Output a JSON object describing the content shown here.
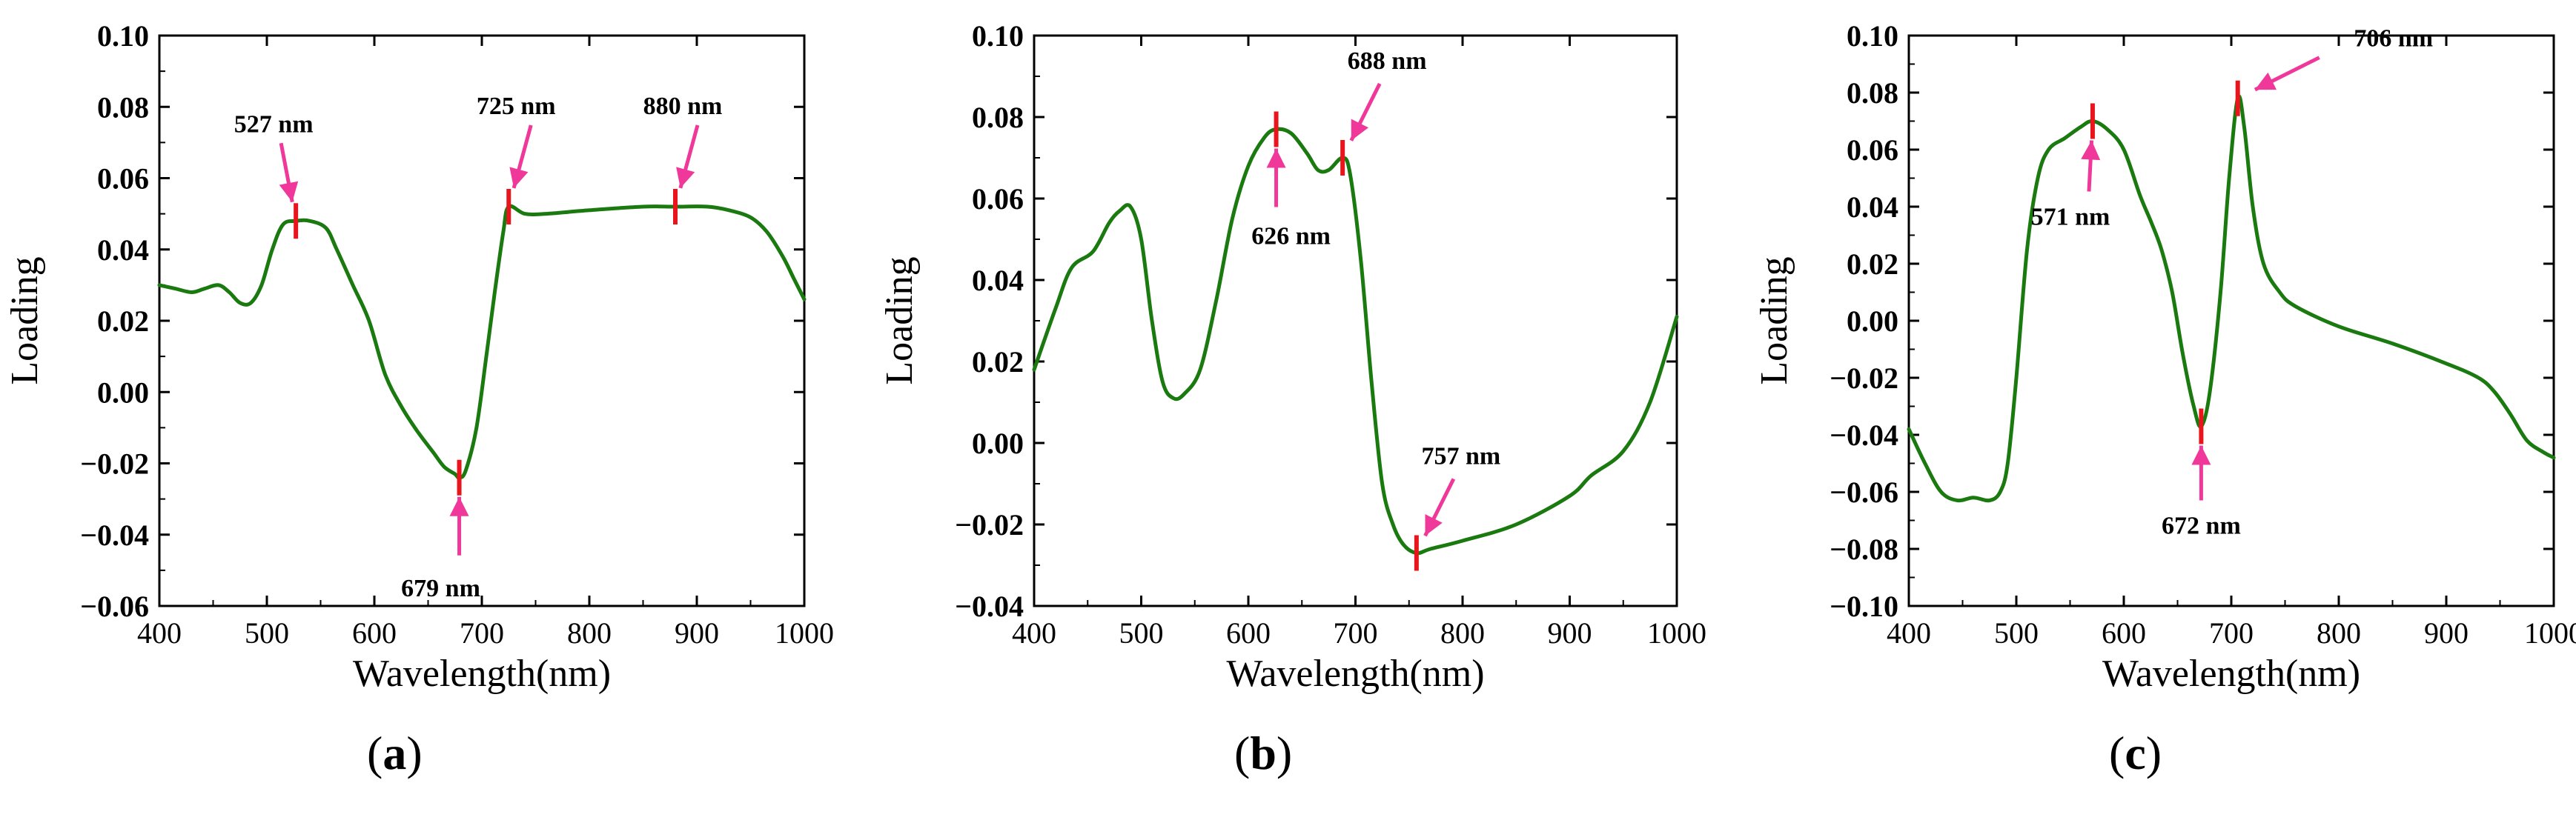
{
  "figure": {
    "panel_labels": [
      "(a)",
      "(b)",
      "(c)"
    ],
    "line_color": "#1a7a10",
    "marker_color": "#e8161c",
    "arrow_color": "#f0389a"
  },
  "chart_data": [
    {
      "type": "line",
      "panel": "(a)",
      "xlabel": "Wavelength(nm)",
      "ylabel": "Loading",
      "xlim": [
        400,
        1000
      ],
      "ylim": [
        -0.06,
        0.1
      ],
      "xticks": [
        400,
        500,
        600,
        700,
        800,
        900,
        1000
      ],
      "yticks": [
        "−0.06",
        "−0.04",
        "−0.02",
        "0.00",
        "0.02",
        "0.04",
        "0.06",
        "0.08",
        "0.10"
      ],
      "ytick_values": [
        -0.06,
        -0.04,
        -0.02,
        0.0,
        0.02,
        0.04,
        0.06,
        0.08,
        0.1
      ],
      "series": [
        {
          "name": "Loading",
          "x": [
            400,
            415,
            430,
            442,
            455,
            465,
            475,
            485,
            495,
            505,
            515,
            527,
            540,
            555,
            565,
            580,
            595,
            610,
            625,
            640,
            655,
            665,
            675,
            679,
            685,
            695,
            705,
            712,
            720,
            725,
            740,
            760,
            800,
            850,
            880,
            910,
            930,
            950,
            965,
            980,
            990,
            1000
          ],
          "y": [
            0.03,
            0.029,
            0.028,
            0.029,
            0.03,
            0.028,
            0.025,
            0.025,
            0.03,
            0.04,
            0.047,
            0.048,
            0.048,
            0.046,
            0.04,
            0.03,
            0.02,
            0.005,
            -0.004,
            -0.011,
            -0.017,
            -0.021,
            -0.023,
            -0.024,
            -0.022,
            -0.01,
            0.012,
            0.028,
            0.045,
            0.052,
            0.05,
            0.05,
            0.051,
            0.052,
            0.052,
            0.052,
            0.051,
            0.049,
            0.045,
            0.038,
            0.032,
            0.026
          ]
        }
      ],
      "annotations": [
        {
          "label": "527 nm",
          "x": 527,
          "y": 0.048,
          "side": "above"
        },
        {
          "label": "725 nm",
          "x": 725,
          "y": 0.052,
          "side": "above"
        },
        {
          "label": "880 nm",
          "x": 880,
          "y": 0.052,
          "side": "above"
        },
        {
          "label": "679 nm",
          "x": 679,
          "y": -0.024,
          "side": "below"
        }
      ]
    },
    {
      "type": "line",
      "panel": "(b)",
      "xlabel": "Wavelength(nm)",
      "ylabel": "Loading",
      "xlim": [
        400,
        1000
      ],
      "ylim": [
        -0.04,
        0.1
      ],
      "xticks": [
        400,
        500,
        600,
        700,
        800,
        900,
        1000
      ],
      "yticks": [
        "−0.04",
        "−0.02",
        "0.00",
        "0.02",
        "0.04",
        "0.06",
        "0.08",
        "0.10"
      ],
      "ytick_values": [
        -0.04,
        -0.02,
        0.0,
        0.02,
        0.04,
        0.06,
        0.08,
        0.1
      ],
      "series": [
        {
          "name": "Loading",
          "x": [
            400,
            420,
            435,
            455,
            470,
            480,
            490,
            500,
            510,
            520,
            530,
            540,
            555,
            570,
            585,
            600,
            615,
            626,
            640,
            655,
            665,
            675,
            688,
            695,
            705,
            715,
            725,
            735,
            745,
            757,
            770,
            800,
            850,
            900,
            920,
            950,
            975,
            1000
          ],
          "y": [
            0.018,
            0.033,
            0.043,
            0.047,
            0.054,
            0.057,
            0.058,
            0.05,
            0.03,
            0.015,
            0.011,
            0.012,
            0.018,
            0.035,
            0.055,
            0.068,
            0.075,
            0.077,
            0.076,
            0.071,
            0.067,
            0.067,
            0.07,
            0.066,
            0.045,
            0.015,
            -0.01,
            -0.02,
            -0.025,
            -0.027,
            -0.026,
            -0.024,
            -0.02,
            -0.013,
            -0.008,
            -0.002,
            0.01,
            0.031
          ]
        }
      ],
      "annotations": [
        {
          "label": "626 nm",
          "x": 626,
          "y": 0.077,
          "side": "below"
        },
        {
          "label": "688 nm",
          "x": 688,
          "y": 0.07,
          "side": "above"
        },
        {
          "label": "757 nm",
          "x": 757,
          "y": -0.027,
          "side": "above"
        }
      ]
    },
    {
      "type": "line",
      "panel": "(c)",
      "xlabel": "Wavelength(nm)",
      "ylabel": "Loading",
      "xlim": [
        400,
        1000
      ],
      "ylim": [
        -0.1,
        0.1
      ],
      "xticks": [
        400,
        500,
        600,
        700,
        800,
        900,
        1000
      ],
      "yticks": [
        "−0.10",
        "−0.08",
        "−0.06",
        "−0.04",
        "−0.02",
        "0.00",
        "0.02",
        "0.04",
        "0.06",
        "0.08",
        "0.10"
      ],
      "ytick_values": [
        -0.1,
        -0.08,
        -0.06,
        -0.04,
        -0.02,
        0.0,
        0.02,
        0.04,
        0.06,
        0.08,
        0.1
      ],
      "series": [
        {
          "name": "Loading",
          "x": [
            400,
            415,
            430,
            445,
            460,
            475,
            485,
            492,
            500,
            510,
            520,
            530,
            545,
            560,
            571,
            585,
            600,
            615,
            625,
            635,
            645,
            655,
            665,
            672,
            680,
            690,
            698,
            706,
            712,
            720,
            730,
            745,
            760,
            800,
            850,
            900,
            930,
            945,
            960,
            975,
            990,
            1000
          ],
          "y": [
            -0.038,
            -0.05,
            -0.06,
            -0.063,
            -0.062,
            -0.063,
            -0.06,
            -0.05,
            -0.02,
            0.025,
            0.05,
            0.06,
            0.064,
            0.068,
            0.07,
            0.067,
            0.06,
            0.044,
            0.035,
            0.025,
            0.01,
            -0.012,
            -0.03,
            -0.037,
            -0.025,
            0.01,
            0.05,
            0.078,
            0.068,
            0.04,
            0.02,
            0.01,
            0.005,
            -0.002,
            -0.008,
            -0.015,
            -0.02,
            -0.025,
            -0.033,
            -0.042,
            -0.046,
            -0.048
          ]
        }
      ],
      "annotations": [
        {
          "label": "571 nm",
          "x": 571,
          "y": 0.07,
          "side": "below"
        },
        {
          "label": "706 nm",
          "x": 706,
          "y": 0.078,
          "side": "right"
        },
        {
          "label": "672 nm",
          "x": 672,
          "y": -0.037,
          "side": "below"
        }
      ]
    }
  ]
}
